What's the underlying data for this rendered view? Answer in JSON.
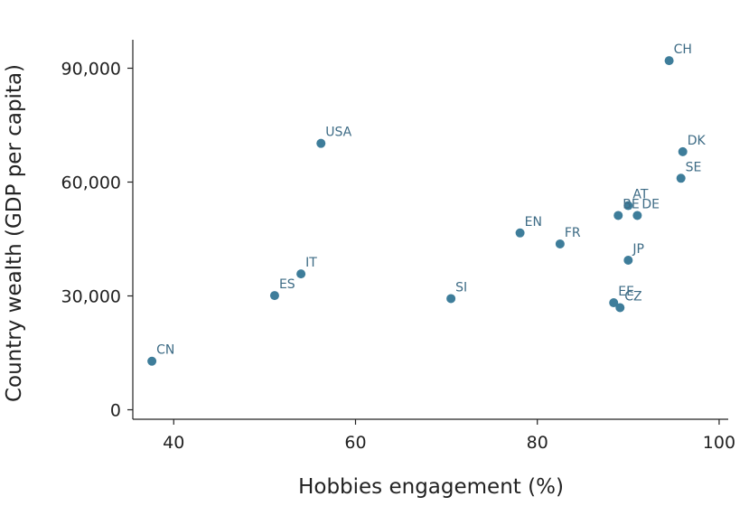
{
  "colors": {
    "point": "#3e7d9a",
    "label": "#3d6b85",
    "axis": "#222222"
  },
  "chart_data": {
    "type": "scatter",
    "xlabel": "Hobbies engagement (%)",
    "ylabel": "Country wealth (GDP per capita)",
    "xlim": [
      35.5,
      101
    ],
    "ylim": [
      -2500,
      97500
    ],
    "xticks": [
      40,
      60,
      80,
      100
    ],
    "xtick_labels": [
      "40",
      "60",
      "80",
      "100"
    ],
    "yticks": [
      0,
      30000,
      60000,
      90000
    ],
    "ytick_labels": [
      "0",
      "30,000",
      "60,000",
      "90,000"
    ],
    "grid": false,
    "legend": "none",
    "points": [
      {
        "label": "CH",
        "x": 94.5,
        "y": 92000
      },
      {
        "label": "USA",
        "x": 56.2,
        "y": 70200
      },
      {
        "label": "DK",
        "x": 96.0,
        "y": 68000
      },
      {
        "label": "SE",
        "x": 95.8,
        "y": 61000
      },
      {
        "label": "AT",
        "x": 90.0,
        "y": 53800
      },
      {
        "label": "BE",
        "x": 88.9,
        "y": 51200
      },
      {
        "label": "DE",
        "x": 91.0,
        "y": 51200
      },
      {
        "label": "EN",
        "x": 78.1,
        "y": 46600
      },
      {
        "label": "FR",
        "x": 82.5,
        "y": 43700
      },
      {
        "label": "JP",
        "x": 90.0,
        "y": 39400
      },
      {
        "label": "IT",
        "x": 54.0,
        "y": 35800
      },
      {
        "label": "ES",
        "x": 51.1,
        "y": 30100
      },
      {
        "label": "SI",
        "x": 70.5,
        "y": 29300
      },
      {
        "label": "EE",
        "x": 88.4,
        "y": 28200
      },
      {
        "label": "CZ",
        "x": 89.1,
        "y": 26900
      },
      {
        "label": "CN",
        "x": 37.6,
        "y": 12800
      }
    ]
  }
}
